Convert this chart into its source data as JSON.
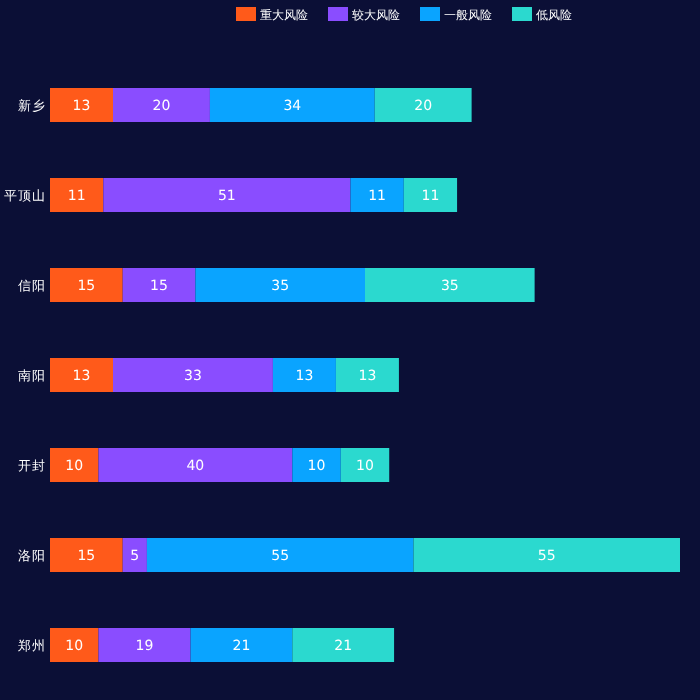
{
  "chart_data": {
    "type": "bar",
    "orientation": "horizontal",
    "stacked": true,
    "data_labels": true,
    "legend": "top",
    "categories": [
      "新乡",
      "平顶山",
      "信阳",
      "南阳",
      "开封",
      "洛阳",
      "郑州"
    ],
    "series": [
      {
        "name": "重大风险",
        "color": "#ff5a1a",
        "values": [
          13,
          11,
          15,
          13,
          10,
          15,
          10
        ]
      },
      {
        "name": "较大风险",
        "color": "#8a4dff",
        "values": [
          20,
          51,
          15,
          33,
          40,
          5,
          19
        ]
      },
      {
        "name": "一般风险",
        "color": "#0aa4ff",
        "values": [
          34,
          11,
          35,
          13,
          10,
          55,
          21
        ]
      },
      {
        "name": "低风险",
        "color": "#2bd9cf",
        "values": [
          20,
          11,
          35,
          13,
          10,
          55,
          21
        ]
      }
    ]
  }
}
